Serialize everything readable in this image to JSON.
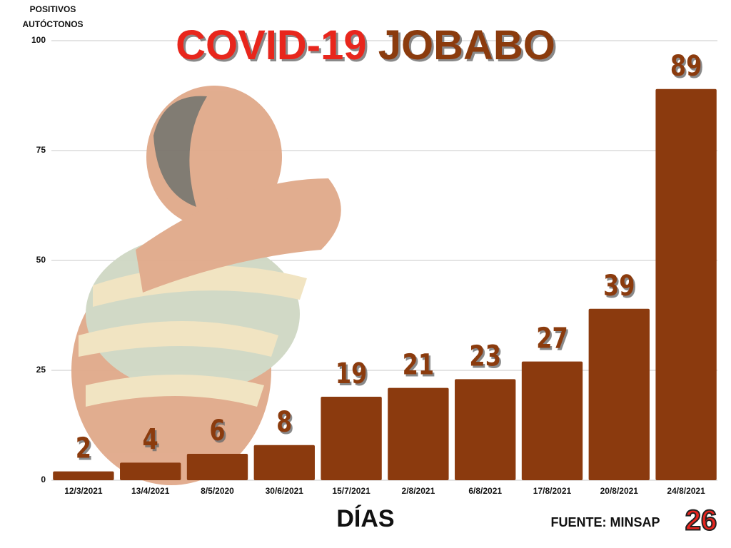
{
  "chart_data": {
    "type": "bar",
    "title": [
      "COVID-19",
      "JOBABO"
    ],
    "ylabel": [
      "POSITIVOS",
      "AUTÓCTONOS"
    ],
    "xlabel": "DÍAS",
    "source": "FUENTE: MINSAP",
    "logo": "26",
    "categories": [
      "12/3/2021",
      "13/4/2021",
      "8/5/2020",
      "30/6/2021",
      "15/7/2021",
      "2/8/2021",
      "6/8/2021",
      "17/8/2021",
      "20/8/2021",
      "24/8/2021"
    ],
    "values": [
      2,
      4,
      6,
      8,
      19,
      21,
      23,
      27,
      39,
      89
    ],
    "color": "#8b3a0e",
    "ylim": [
      0,
      100
    ],
    "yticks": [
      0,
      25,
      50,
      75,
      100
    ],
    "grid": true
  }
}
